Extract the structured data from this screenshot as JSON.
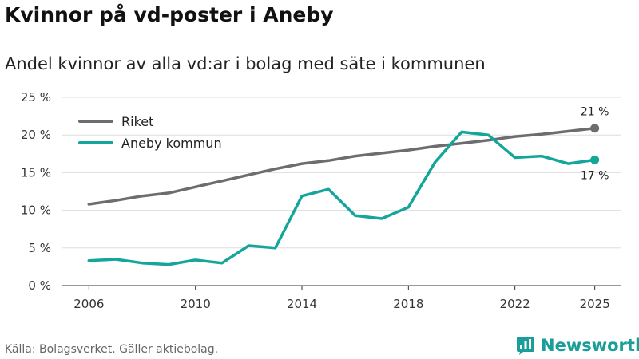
{
  "title": "Kvinnor på vd-poster i Aneby",
  "subtitle": "Andel kvinnor av alla vd:ar i bolag med säte i kommunen",
  "source": "Källa: Bolagsverket. Gäller aktiebolag.",
  "brand": "Newsworthy",
  "colors": {
    "riket": "#6d6c70",
    "aneby": "#14a59b",
    "grid": "#dddddd",
    "axis": "#333333",
    "brand": "#1a9e99"
  },
  "chart_data": {
    "type": "line",
    "title": "Kvinnor på vd-poster i Aneby",
    "subtitle": "Andel kvinnor av alla vd:ar i bolag med säte i kommunen",
    "xlabel": "",
    "ylabel": "",
    "x": [
      2006,
      2007,
      2008,
      2009,
      2010,
      2011,
      2012,
      2013,
      2014,
      2015,
      2016,
      2017,
      2018,
      2019,
      2020,
      2021,
      2022,
      2023,
      2024,
      2025
    ],
    "xlim": [
      2006,
      2025
    ],
    "ylim": [
      0,
      25
    ],
    "grid": true,
    "legend_position": "top-left",
    "x_ticks": [
      2006,
      2010,
      2014,
      2018,
      2022,
      2025
    ],
    "x_tick_labels": [
      "2006",
      "2010",
      "2014",
      "2018",
      "2022",
      "2025"
    ],
    "y_ticks": [
      0,
      5,
      10,
      15,
      20,
      25
    ],
    "y_tick_labels": [
      "0 %",
      "5 %",
      "10 %",
      "15 %",
      "20 %",
      "25 %"
    ],
    "series": [
      {
        "name": "Riket",
        "color": "#6d6c70",
        "values": [
          10.8,
          11.3,
          11.9,
          12.3,
          13.1,
          13.9,
          14.7,
          15.5,
          16.2,
          16.6,
          17.2,
          17.6,
          18.0,
          18.5,
          18.9,
          19.3,
          19.8,
          20.1,
          20.5,
          20.9
        ],
        "end_label": "21 %"
      },
      {
        "name": "Aneby kommun",
        "color": "#14a59b",
        "values": [
          3.3,
          3.5,
          3.0,
          2.8,
          3.4,
          3.0,
          5.3,
          5.0,
          11.9,
          12.8,
          9.3,
          8.9,
          10.4,
          16.4,
          20.4,
          20.0,
          17.0,
          17.2,
          16.2,
          16.7
        ],
        "end_label": "17 %"
      }
    ]
  }
}
